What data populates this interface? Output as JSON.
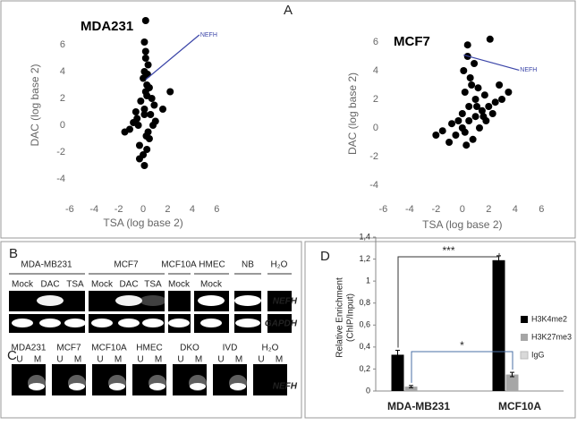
{
  "panel_labels": [
    "A",
    "B",
    "C",
    "D"
  ],
  "chart_data": [
    {
      "type": "scatter",
      "title": "MDA231",
      "xlabel": "TSA (log base 2)",
      "ylabel": "DAC (log base 2)",
      "xlim": [
        -6.5,
        7
      ],
      "ylim": [
        -5.5,
        8.5
      ],
      "xticks": [
        -6,
        -4,
        -2,
        0,
        2,
        4,
        6
      ],
      "yticks": [
        -4,
        -2,
        0,
        2,
        4,
        6
      ],
      "color": "#000000",
      "x": [
        -0.5,
        0.1,
        0.4,
        -0.3,
        0.2,
        0.6,
        -0.8,
        0.0,
        0.3,
        -0.2,
        0.5,
        0.9,
        -1.1,
        0.1,
        0.2,
        -0.4,
        0.7,
        0.3,
        0.0,
        0.1,
        0.2,
        0.4,
        1.0,
        -0.6,
        0.3,
        0.1,
        0.2,
        0.35,
        0.5,
        -1.5,
        1.6,
        2.2,
        0.1,
        0.25,
        -0.3,
        0.8
      ],
      "y": [
        0.5,
        1.2,
        -0.5,
        -1.5,
        2.5,
        0.8,
        0.2,
        -2.2,
        3.0,
        1.8,
        -1.0,
        1.5,
        -0.3,
        4.0,
        5.0,
        0.0,
        2.0,
        -1.8,
        3.5,
        6.2,
        7.8,
        4.5,
        0.3,
        1.0,
        2.2,
        -3.0,
        5.5,
        3.8,
        2.8,
        -0.5,
        1.2,
        2.5,
        0.8,
        -0.8,
        -2.5,
        0.0
      ],
      "annotation": {
        "text": "NEFH",
        "x": 0.2,
        "y": 3.4,
        "color": "#3b45a8"
      }
    },
    {
      "type": "scatter",
      "title": "MCF7",
      "xlabel": "TSA (log base 2)",
      "ylabel": "DAC (log base 2)",
      "xlim": [
        -6.5,
        7
      ],
      "ylim": [
        -5,
        7
      ],
      "xticks": [
        -6,
        -4,
        -2,
        0,
        2,
        4,
        6
      ],
      "yticks": [
        -4,
        -2,
        0,
        2,
        4,
        6
      ],
      "color": "#000000",
      "x": [
        -1.0,
        -0.5,
        0.0,
        0.5,
        1.0,
        1.5,
        2.0,
        2.5,
        3.0,
        -1.5,
        -0.8,
        0.3,
        0.8,
        1.3,
        1.8,
        2.3,
        0.0,
        0.5,
        1.0,
        -0.3,
        0.2,
        0.7,
        1.2,
        1.7,
        0.1,
        0.4,
        0.6,
        0.9,
        2.8,
        3.5,
        -2.0,
        0.2,
        1.1,
        1.6,
        0.4,
        2.1
      ],
      "y": [
        -1.0,
        -0.5,
        0.0,
        0.5,
        0.8,
        1.2,
        1.5,
        1.8,
        2.0,
        -0.2,
        0.3,
        -1.2,
        -0.8,
        0.0,
        0.5,
        1.0,
        1.0,
        1.5,
        2.0,
        0.5,
        2.5,
        3.0,
        2.8,
        2.3,
        4.0,
        5.0,
        3.5,
        4.5,
        3.0,
        2.5,
        -0.5,
        -0.3,
        1.5,
        0.8,
        5.8,
        6.2
      ],
      "annotation": {
        "text": "NEFH",
        "x": 0.1,
        "y": 5.1,
        "color": "#3b45a8"
      }
    },
    {
      "type": "bar",
      "ylabel": [
        "Relative Enrichment",
        "(ChIP/Input)"
      ],
      "categories": [
        "MDA-MB231",
        "MCF10A"
      ],
      "ylim": [
        0,
        1.4
      ],
      "yticks": [
        0,
        {
          "value": 0.2,
          "label": "0,2"
        },
        {
          "value": 0.4,
          "label": "0,4"
        },
        {
          "value": 0.6,
          "label": "0,6"
        },
        {
          "value": 0.8,
          "label": "0,8"
        },
        {
          "value": 1,
          "label": "1"
        },
        {
          "value": 1.2,
          "label": "1,2"
        },
        {
          "value": 1.4,
          "label": "1,4"
        }
      ],
      "series": [
        {
          "name": "H3K4me2",
          "color": "#000000",
          "values": [
            0.33,
            1.19
          ],
          "errors": [
            0.04,
            0.04
          ]
        },
        {
          "name": "H3K27me3",
          "color": "#a6a6a6",
          "values": [
            0.04,
            0.15
          ],
          "errors": [
            0.01,
            0.02
          ]
        },
        {
          "name": "IgG",
          "color": "#d9d9d9",
          "values": [
            0,
            0
          ],
          "errors": [
            0,
            0
          ]
        }
      ],
      "annotations": [
        "***",
        "*"
      ]
    }
  ],
  "gel_B": {
    "groups": [
      "MDA-MB231",
      "MCF7",
      "MCF10A",
      "HMEC",
      "NB",
      "H₂O"
    ],
    "lanes": [
      "Mock",
      "DAC",
      "TSA",
      "Mock",
      "DAC",
      "TSA",
      "Mock",
      "Mock"
    ],
    "genes": [
      "NEFH",
      "GAPDH"
    ]
  },
  "gel_C": {
    "samples": [
      "MDA231",
      "MCF7",
      "MCF10A",
      "HMEC",
      "DKO",
      "IVD",
      "H₂O"
    ],
    "lanes": [
      "U",
      "M"
    ],
    "gene": "NEFH"
  }
}
